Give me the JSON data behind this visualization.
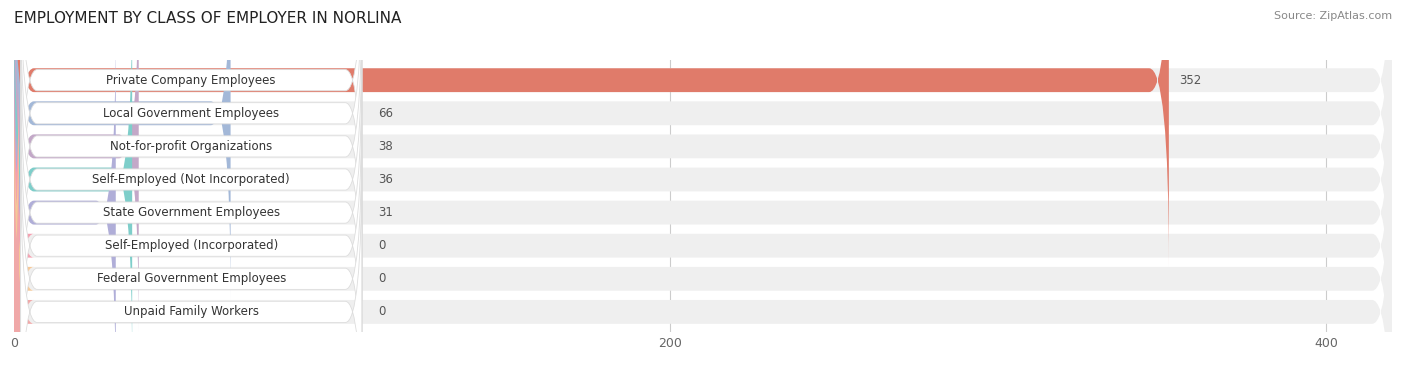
{
  "title": "EMPLOYMENT BY CLASS OF EMPLOYER IN NORLINA",
  "source": "Source: ZipAtlas.com",
  "categories": [
    "Private Company Employees",
    "Local Government Employees",
    "Not-for-profit Organizations",
    "Self-Employed (Not Incorporated)",
    "State Government Employees",
    "Self-Employed (Incorporated)",
    "Federal Government Employees",
    "Unpaid Family Workers"
  ],
  "values": [
    352,
    66,
    38,
    36,
    31,
    0,
    0,
    0
  ],
  "bar_colors": [
    "#e07b6a",
    "#a3b8d8",
    "#c3a8c8",
    "#7ececa",
    "#b0aed8",
    "#f4a0b0",
    "#f5c898",
    "#f0a8a8"
  ],
  "row_bg_color": "#efefef",
  "label_bg_color": "#ffffff",
  "xlim_max": 420,
  "xticks": [
    0,
    200,
    400
  ],
  "title_fontsize": 11,
  "label_fontsize": 8.5,
  "value_fontsize": 8.5,
  "source_fontsize": 8,
  "background_color": "#ffffff"
}
